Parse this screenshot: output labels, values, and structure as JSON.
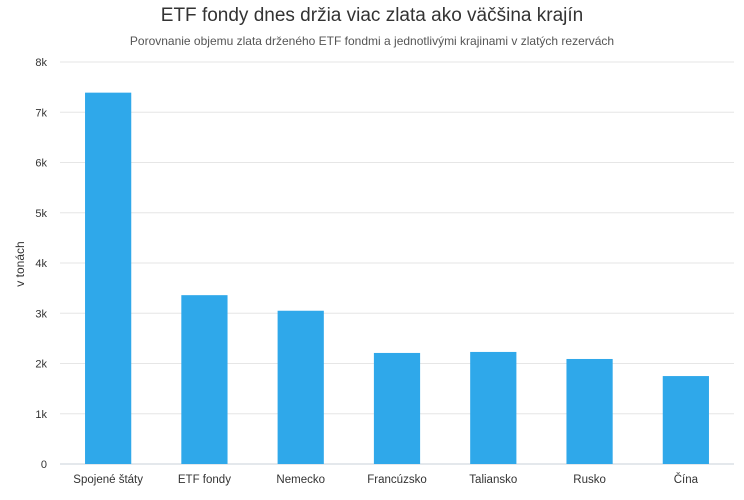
{
  "chart_data": {
    "type": "bar",
    "title": "ETF fondy dnes držia viac zlata ako väčšina krajín",
    "subtitle": "Porovnanie objemu zlata drženého ETF fondmi a jednotlivými krajinami v zlatých rezervách",
    "ylabel": "v tonách",
    "xlabel": "",
    "categories": [
      "Spojené štáty",
      "ETF fondy",
      "Nemecko",
      "Francúzsko",
      "Taliansko",
      "Rusko",
      "Čína"
    ],
    "values": [
      7390,
      3360,
      3050,
      2210,
      2230,
      2090,
      1750
    ],
    "ylim": [
      0,
      8000
    ],
    "yticks": [
      "0",
      "1k",
      "2k",
      "3k",
      "4k",
      "5k",
      "6k",
      "7k",
      "8k"
    ],
    "grid": true,
    "bar_color": "#2fa8ea",
    "legend": "none"
  }
}
